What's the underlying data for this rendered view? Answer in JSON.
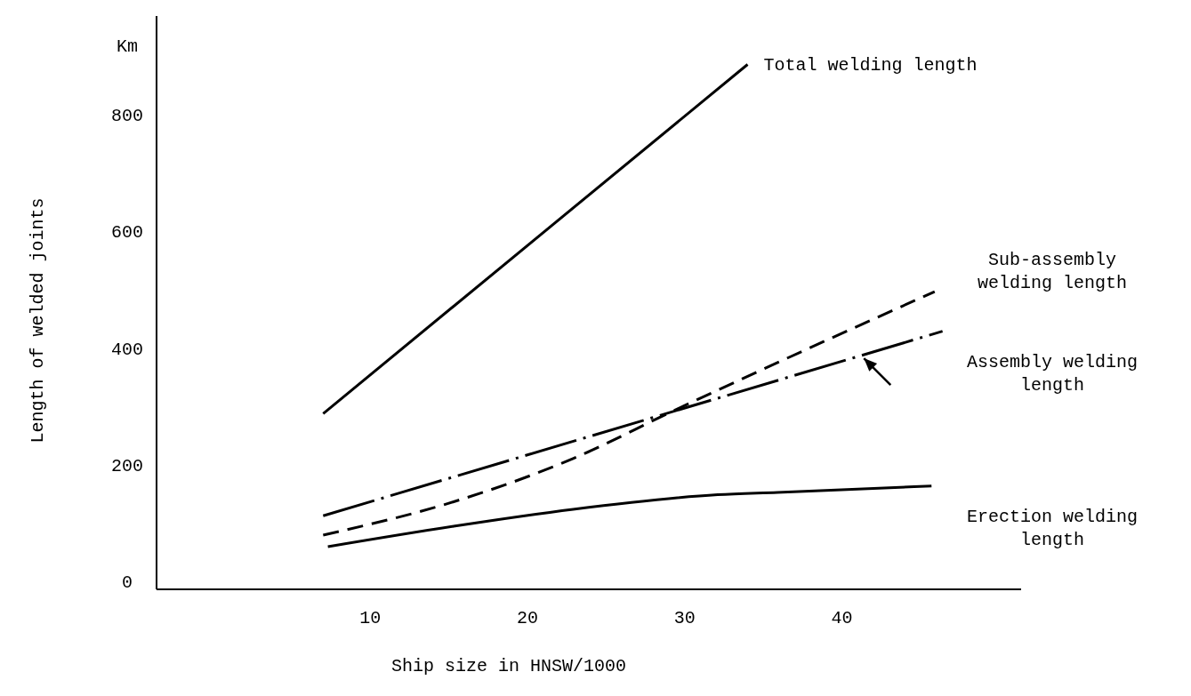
{
  "chart_data": {
    "type": "line",
    "xlabel": "Ship size in HNSW/1000",
    "ylabel": "Length of welded joints",
    "annotations": [
      "Km"
    ],
    "xlim": [
      -3.6,
      51.4
    ],
    "xticks": [
      10,
      20,
      30,
      40
    ],
    "ylim": [
      -13,
      969
    ],
    "yticks": [
      0,
      200,
      400,
      600,
      800
    ],
    "series": [
      {
        "name": "Total welding length",
        "color": "#000000",
        "line_style": "solid",
        "x": [
          7,
          34
        ],
        "values": [
          288,
          886
        ]
      },
      {
        "name": "Sub-assembly welding length",
        "color": "#000000",
        "line_style": "dashed",
        "x": [
          7,
          15.3,
          22.9,
          29.3,
          45.9
        ],
        "values": [
          80,
          137,
          211,
          293,
          497
        ]
      },
      {
        "name": "Assembly welding length",
        "color": "#000000",
        "line_style": "dashdot",
        "x": [
          7,
          46.4
        ],
        "values": [
          113,
          429
        ]
      },
      {
        "name": "Erection welding length",
        "color": "#000000",
        "line_style": "solid",
        "x": [
          7.3,
          15.3,
          22.9,
          32.1,
          35.9,
          45.7
        ],
        "values": [
          60,
          95,
          124,
          149,
          153,
          164
        ]
      }
    ]
  }
}
